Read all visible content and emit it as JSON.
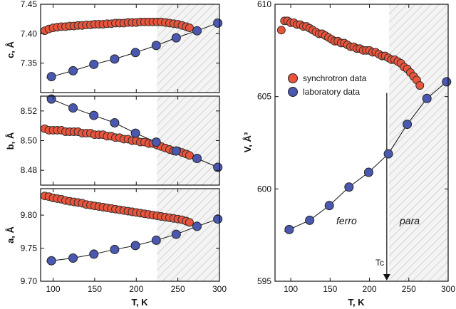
{
  "colors": {
    "synchrotron": "#e8553c",
    "laboratory": "#4a58b0",
    "hatch": "#bdbdbd"
  },
  "labels": {
    "xlabel": "T, K",
    "legend_sync": "synchrotron data",
    "legend_lab": "laboratory data",
    "ferro": "ferro",
    "para": "para",
    "tc": "Tc"
  },
  "chart_data": [
    {
      "type": "scatter",
      "panel": "c",
      "ylabel": "c, Å",
      "xlabel": "",
      "xlim": [
        85,
        300
      ],
      "ylim": [
        7.3,
        7.45
      ],
      "yticks": [
        7.35,
        7.4,
        7.45
      ],
      "shaded_from_x": 225,
      "series": [
        {
          "name": "synchrotron data",
          "x": [
            90,
            95,
            100,
            105,
            110,
            115,
            120,
            125,
            130,
            135,
            140,
            145,
            150,
            155,
            160,
            165,
            170,
            175,
            180,
            185,
            190,
            195,
            200,
            205,
            210,
            215,
            220,
            225,
            230,
            235,
            240,
            245,
            250,
            255,
            260,
            264
          ],
          "y": [
            7.405,
            7.408,
            7.41,
            7.411,
            7.412,
            7.412,
            7.413,
            7.413,
            7.414,
            7.414,
            7.415,
            7.415,
            7.416,
            7.416,
            7.416,
            7.417,
            7.417,
            7.418,
            7.418,
            7.418,
            7.419,
            7.419,
            7.419,
            7.42,
            7.42,
            7.42,
            7.42,
            7.42,
            7.42,
            7.419,
            7.418,
            7.417,
            7.416,
            7.414,
            7.412,
            7.41
          ]
        },
        {
          "name": "laboratory data",
          "x": [
            98,
            124,
            149,
            174,
            199,
            224,
            248,
            273,
            298
          ],
          "y": [
            7.327,
            7.337,
            7.348,
            7.357,
            7.368,
            7.38,
            7.393,
            7.405,
            7.418
          ]
        }
      ]
    },
    {
      "type": "scatter",
      "panel": "b",
      "ylabel": "b, Å",
      "xlabel": "",
      "xlim": [
        85,
        300
      ],
      "ylim": [
        8.47,
        8.53
      ],
      "yticks": [
        8.48,
        8.5,
        8.52
      ],
      "shaded_from_x": 225,
      "series": [
        {
          "name": "synchrotron data",
          "x": [
            90,
            95,
            100,
            105,
            110,
            115,
            120,
            125,
            130,
            135,
            140,
            145,
            150,
            155,
            160,
            165,
            170,
            175,
            180,
            185,
            190,
            195,
            200,
            205,
            210,
            215,
            220,
            225,
            230,
            235,
            240,
            245,
            250,
            255,
            260,
            264
          ],
          "y": [
            8.508,
            8.507,
            8.507,
            8.507,
            8.507,
            8.506,
            8.506,
            8.506,
            8.506,
            8.505,
            8.505,
            8.505,
            8.504,
            8.504,
            8.504,
            8.503,
            8.503,
            8.502,
            8.502,
            8.501,
            8.501,
            8.5,
            8.5,
            8.499,
            8.499,
            8.498,
            8.498,
            8.497,
            8.496,
            8.495,
            8.494,
            8.493,
            8.493,
            8.492,
            8.491,
            8.49
          ]
        },
        {
          "name": "laboratory data",
          "x": [
            98,
            124,
            149,
            174,
            199,
            224,
            248,
            273,
            298
          ],
          "y": [
            8.528,
            8.522,
            8.517,
            8.512,
            8.505,
            8.499,
            8.493,
            8.488,
            8.482
          ]
        }
      ]
    },
    {
      "type": "scatter",
      "panel": "a",
      "ylabel": "a, Å",
      "xlabel": "T, K",
      "xlim": [
        85,
        300
      ],
      "ylim": [
        9.7,
        9.84
      ],
      "yticks": [
        9.7,
        9.75,
        9.8
      ],
      "xticks": [
        100,
        150,
        200,
        250,
        300
      ],
      "shaded_from_x": 225,
      "series": [
        {
          "name": "synchrotron data",
          "x": [
            90,
            95,
            100,
            105,
            110,
            115,
            120,
            125,
            130,
            135,
            140,
            145,
            150,
            155,
            160,
            165,
            170,
            175,
            180,
            185,
            190,
            195,
            200,
            205,
            210,
            215,
            220,
            225,
            230,
            235,
            240,
            245,
            250,
            255,
            260,
            264
          ],
          "y": [
            9.829,
            9.828,
            9.826,
            9.825,
            9.824,
            9.822,
            9.821,
            9.82,
            9.819,
            9.818,
            9.816,
            9.815,
            9.814,
            9.813,
            9.812,
            9.811,
            9.81,
            9.809,
            9.808,
            9.807,
            9.806,
            9.805,
            9.804,
            9.803,
            9.802,
            9.801,
            9.8,
            9.799,
            9.798,
            9.797,
            9.796,
            9.795,
            9.794,
            9.793,
            9.791,
            9.789
          ]
        },
        {
          "name": "laboratory data",
          "x": [
            98,
            124,
            149,
            174,
            199,
            224,
            248,
            273,
            298
          ],
          "y": [
            9.731,
            9.735,
            9.741,
            9.748,
            9.754,
            9.762,
            9.771,
            9.783,
            9.794
          ]
        }
      ]
    },
    {
      "type": "scatter",
      "panel": "V",
      "ylabel": "V, Å³",
      "xlabel": "T, K",
      "xlim": [
        80,
        300
      ],
      "ylim": [
        595,
        610
      ],
      "yticks": [
        595,
        600,
        605,
        610
      ],
      "xticks": [
        100,
        150,
        200,
        250,
        300
      ],
      "shaded_from_x": 225,
      "tc": 222,
      "series": [
        {
          "name": "synchrotron data",
          "x": [
            88,
            92,
            96,
            100,
            104,
            108,
            112,
            116,
            120,
            124,
            128,
            132,
            136,
            140,
            144,
            148,
            152,
            156,
            160,
            164,
            168,
            172,
            176,
            180,
            184,
            188,
            192,
            196,
            200,
            204,
            208,
            212,
            216,
            220,
            224,
            228,
            232,
            236,
            240,
            244,
            248,
            252,
            256,
            260,
            264
          ],
          "y": [
            608.6,
            609.1,
            609.1,
            609.0,
            609.0,
            608.9,
            608.9,
            608.8,
            608.8,
            608.7,
            608.6,
            608.5,
            608.4,
            608.4,
            608.3,
            608.2,
            608.1,
            608.0,
            608.0,
            607.9,
            607.9,
            607.8,
            607.7,
            607.7,
            607.6,
            607.6,
            607.5,
            607.5,
            607.5,
            607.4,
            607.4,
            607.3,
            607.2,
            607.2,
            607.1,
            607.0,
            607.0,
            606.9,
            606.8,
            606.6,
            606.5,
            606.3,
            606.1,
            605.9,
            605.6
          ]
        },
        {
          "name": "laboratory data",
          "x": [
            98,
            124,
            149,
            174,
            199,
            224,
            248,
            273,
            298
          ],
          "y": [
            597.8,
            598.3,
            599.1,
            600.1,
            600.9,
            601.9,
            603.5,
            604.9,
            605.8
          ]
        }
      ]
    }
  ]
}
